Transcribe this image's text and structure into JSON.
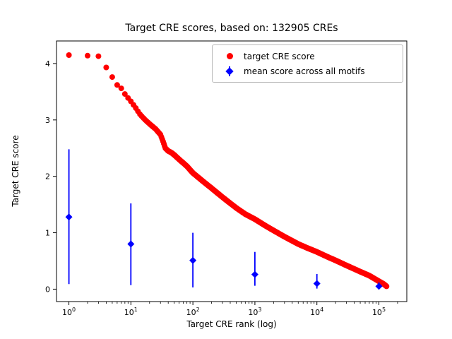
{
  "chart_data": {
    "type": "scatter",
    "title": "Target CRE scores, based on: 132905 CREs",
    "xlabel": "Target CRE rank (log)",
    "ylabel": "Target CRE score",
    "x_scale": "log",
    "xlim_log10": [
      -0.2,
      5.45
    ],
    "ylim": [
      -0.22,
      4.4
    ],
    "grid": false,
    "y_ticks": [
      0,
      1,
      2,
      3,
      4
    ],
    "x_ticks": [
      {
        "value": 1,
        "base": "10",
        "exponent": "0"
      },
      {
        "value": 10,
        "base": "10",
        "exponent": "1"
      },
      {
        "value": 100,
        "base": "10",
        "exponent": "2"
      },
      {
        "value": 1000,
        "base": "10",
        "exponent": "3"
      },
      {
        "value": 10000,
        "base": "10",
        "exponent": "4"
      },
      {
        "value": 100000,
        "base": "10",
        "exponent": "5"
      }
    ],
    "legend": {
      "position": "upper right"
    },
    "series": [
      {
        "name": "target CRE score",
        "type": "scatter",
        "marker": "circle",
        "color": "#ff0000",
        "total_points": 132905,
        "curve_points": [
          [
            1,
            4.15
          ],
          [
            2,
            4.14
          ],
          [
            3,
            4.13
          ],
          [
            4,
            3.93
          ],
          [
            5,
            3.76
          ],
          [
            6,
            3.62
          ],
          [
            7,
            3.56
          ],
          [
            8,
            3.46
          ],
          [
            9,
            3.39
          ],
          [
            10,
            3.33
          ],
          [
            12,
            3.21
          ],
          [
            14,
            3.1
          ],
          [
            17,
            3.0
          ],
          [
            20,
            2.93
          ],
          [
            25,
            2.84
          ],
          [
            30,
            2.74
          ],
          [
            33,
            2.62
          ],
          [
            36,
            2.5
          ],
          [
            40,
            2.45
          ],
          [
            45,
            2.42
          ],
          [
            50,
            2.38
          ],
          [
            60,
            2.3
          ],
          [
            80,
            2.18
          ],
          [
            100,
            2.06
          ],
          [
            150,
            1.9
          ],
          [
            200,
            1.79
          ],
          [
            300,
            1.63
          ],
          [
            500,
            1.44
          ],
          [
            700,
            1.33
          ],
          [
            1000,
            1.24
          ],
          [
            1500,
            1.12
          ],
          [
            2000,
            1.04
          ],
          [
            3000,
            0.93
          ],
          [
            5000,
            0.8
          ],
          [
            7000,
            0.73
          ],
          [
            10000,
            0.66
          ],
          [
            15000,
            0.57
          ],
          [
            20000,
            0.51
          ],
          [
            30000,
            0.42
          ],
          [
            50000,
            0.31
          ],
          [
            70000,
            0.24
          ],
          [
            100000,
            0.14
          ],
          [
            120000,
            0.09
          ],
          [
            132905,
            0.05
          ]
        ]
      },
      {
        "name": "mean score across all motifs",
        "type": "errorbar",
        "marker": "diamond",
        "color": "#0000ff",
        "points": [
          {
            "x": 1,
            "y": 1.28,
            "ylow": 0.09,
            "yhigh": 2.48
          },
          {
            "x": 10,
            "y": 0.8,
            "ylow": 0.07,
            "yhigh": 1.52
          },
          {
            "x": 100,
            "y": 0.51,
            "ylow": 0.03,
            "yhigh": 1.0
          },
          {
            "x": 1000,
            "y": 0.26,
            "ylow": 0.06,
            "yhigh": 0.66
          },
          {
            "x": 10000,
            "y": 0.1,
            "ylow": 0.01,
            "yhigh": 0.27
          },
          {
            "x": 100000,
            "y": 0.05,
            "ylow": 0.01,
            "yhigh": 0.12
          }
        ]
      }
    ]
  }
}
